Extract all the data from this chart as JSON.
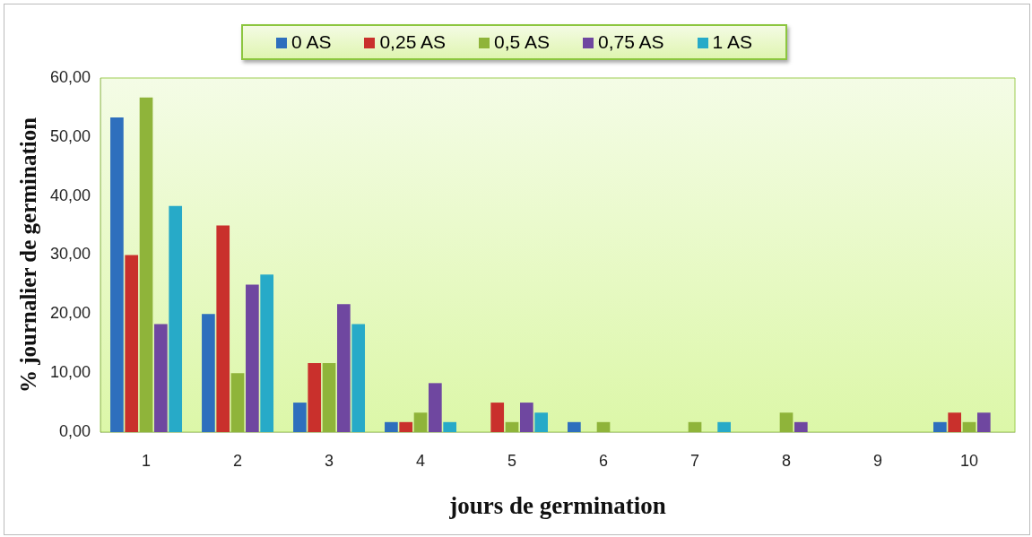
{
  "chart_data": {
    "type": "bar",
    "xlabel": "jours de germination",
    "ylabel": "% journalier de germination",
    "categories": [
      "1",
      "2",
      "3",
      "4",
      "5",
      "6",
      "7",
      "8",
      "9",
      "10"
    ],
    "series": [
      {
        "name": "0  AS",
        "color": "#2e6fbd",
        "values": [
          53.3,
          20,
          5,
          1.7,
          0,
          1.7,
          0,
          0,
          0,
          1.7
        ]
      },
      {
        "name": "0,25 AS",
        "color": "#c9302c",
        "values": [
          30,
          35,
          11.7,
          1.7,
          5,
          0,
          0,
          0,
          0,
          3.3
        ]
      },
      {
        "name": "0,5 AS",
        "color": "#8fb43a",
        "values": [
          56.7,
          10,
          11.7,
          3.3,
          1.7,
          1.7,
          1.7,
          3.3,
          0,
          1.7
        ]
      },
      {
        "name": "0,75 AS",
        "color": "#6f47a0",
        "values": [
          18.3,
          25,
          21.7,
          8.3,
          5,
          0,
          0,
          1.7,
          0,
          3.3
        ]
      },
      {
        "name": "1 AS",
        "color": "#27aac8",
        "values": [
          38.3,
          26.7,
          18.3,
          1.7,
          3.3,
          0,
          1.7,
          0,
          0,
          0
        ]
      }
    ],
    "ylim": [
      0,
      60
    ],
    "yticks": [
      {
        "value": 0,
        "label": "0,00"
      },
      {
        "value": 10,
        "label": "10,00"
      },
      {
        "value": 20,
        "label": "20,00"
      },
      {
        "value": 30,
        "label": "30,00"
      },
      {
        "value": 40,
        "label": "40,00"
      },
      {
        "value": 50,
        "label": "50,00"
      },
      {
        "value": 60,
        "label": "60,00"
      }
    ],
    "grid": false,
    "legend": "top"
  }
}
